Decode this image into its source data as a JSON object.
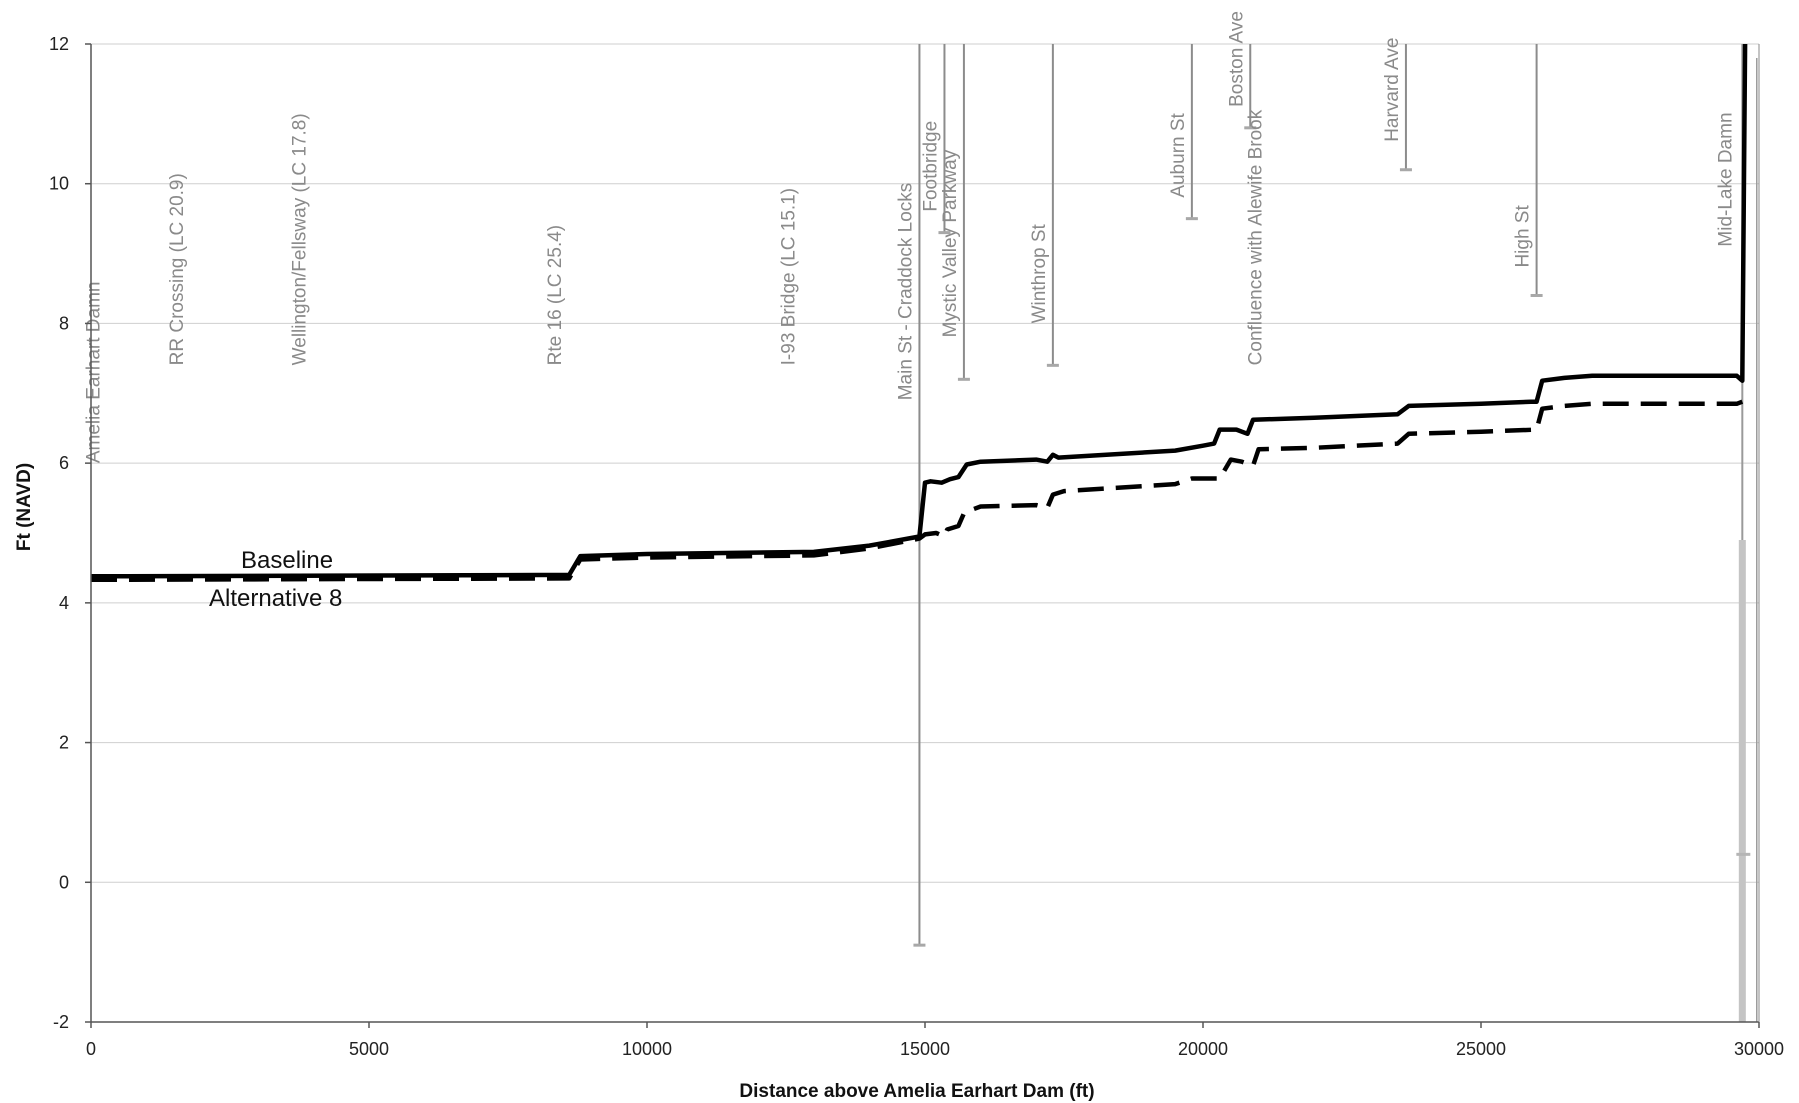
{
  "chart_data": {
    "type": "line",
    "title": "",
    "xlabel": "Distance above Amelia Earhart Dam (ft)",
    "ylabel": "Ft (NAVD)",
    "xlim": [
      0,
      30000
    ],
    "ylim": [
      -2,
      12
    ],
    "x_ticks": [
      0,
      5000,
      10000,
      15000,
      20000,
      25000,
      30000
    ],
    "y_ticks": [
      -2,
      0,
      2,
      4,
      6,
      8,
      10,
      12
    ],
    "grid": "horizontal",
    "legend": "inline labels near left of plot",
    "series": [
      {
        "name": "Baseline",
        "style": "solid",
        "color": "#000000",
        "x": [
          0,
          8600,
          8800,
          10000,
          13000,
          14000,
          14900,
          15000,
          15100,
          15300,
          15450,
          15600,
          15750,
          16000,
          17000,
          17200,
          17300,
          17400,
          19500,
          20000,
          20200,
          20300,
          20600,
          20800,
          20900,
          22000,
          23500,
          23700,
          25000,
          25900,
          26000,
          26100,
          26500,
          27000,
          28000,
          29600,
          29700,
          29750
        ],
        "y": [
          4.38,
          4.4,
          4.67,
          4.7,
          4.73,
          4.82,
          4.95,
          5.72,
          5.74,
          5.72,
          5.77,
          5.8,
          5.98,
          6.02,
          6.05,
          6.02,
          6.12,
          6.08,
          6.18,
          6.25,
          6.28,
          6.48,
          6.48,
          6.42,
          6.62,
          6.65,
          6.7,
          6.82,
          6.85,
          6.88,
          6.88,
          7.18,
          7.22,
          7.25,
          7.25,
          7.25,
          7.18,
          12.0
        ]
      },
      {
        "name": "Alternative 8",
        "style": "dashed",
        "color": "#000000",
        "x": [
          0,
          8600,
          8800,
          10000,
          13000,
          14000,
          14900,
          15000,
          15200,
          15350,
          15400,
          15600,
          15700,
          15800,
          16000,
          17000,
          17200,
          17300,
          17500,
          19500,
          19800,
          20300,
          20500,
          20700,
          20900,
          21000,
          22000,
          23500,
          23700,
          25000,
          26000,
          26100,
          26500,
          27000,
          28000,
          29600,
          29700
        ],
        "y": [
          4.33,
          4.35,
          4.62,
          4.65,
          4.68,
          4.78,
          4.92,
          4.98,
          5.0,
          4.95,
          5.05,
          5.1,
          5.28,
          5.32,
          5.38,
          5.4,
          5.36,
          5.55,
          5.6,
          5.7,
          5.78,
          5.78,
          6.05,
          6.02,
          5.96,
          6.2,
          6.22,
          6.28,
          6.42,
          6.45,
          6.48,
          6.78,
          6.82,
          6.85,
          6.85,
          6.85,
          6.88
        ]
      }
    ],
    "landmarks": [
      {
        "label": "Amelia Earhart Damn",
        "x": 300,
        "label_y": 6.0,
        "top_y": null,
        "bottom_y": null
      },
      {
        "label": "RR Crossing (LC 20.9)",
        "x": 1800,
        "label_y": 7.4,
        "top_y": null,
        "bottom_y": null
      },
      {
        "label": "Wellington/Fellsway (LC 17.8)",
        "x": 4000,
        "label_y": 7.4,
        "top_y": null,
        "bottom_y": null
      },
      {
        "label": "Rte 16 (LC 25.4)",
        "x": 8600,
        "label_y": 7.4,
        "top_y": null,
        "bottom_y": null
      },
      {
        "label": "I-93 Bridge (LC 15.1)",
        "x": 12800,
        "label_y": 7.4,
        "top_y": null,
        "bottom_y": null
      },
      {
        "label": "Main St - Craddock Locks",
        "x": 14900,
        "label_y": 6.9,
        "top_y": 12,
        "bottom_y": -0.9
      },
      {
        "label": "Footbridge",
        "x": 15350,
        "label_y": 9.6,
        "top_y": 12,
        "bottom_y": 9.3
      },
      {
        "label": "Mystic Valley Parkway",
        "x": 15700,
        "label_y": 7.8,
        "top_y": 12,
        "bottom_y": 7.2
      },
      {
        "label": "Winthrop St",
        "x": 17300,
        "label_y": 8.0,
        "top_y": 12,
        "bottom_y": 7.4
      },
      {
        "label": "Auburn St",
        "x": 19800,
        "label_y": 9.8,
        "top_y": 12,
        "bottom_y": 9.5
      },
      {
        "label": "Boston Ave",
        "x": 20850,
        "label_y": 11.1,
        "top_y": 12,
        "bottom_y": 10.8
      },
      {
        "label": "Confluence with Alewife Brook",
        "x": 21200,
        "label_y": 7.4,
        "top_y": null,
        "bottom_y": null
      },
      {
        "label": "Harvard Ave",
        "x": 23650,
        "label_y": 10.6,
        "top_y": 12,
        "bottom_y": 10.2
      },
      {
        "label": "High St",
        "x": 26000,
        "label_y": 8.8,
        "top_y": 12,
        "bottom_y": 8.4
      },
      {
        "label": "Mid-Lake Damn",
        "x": 29650,
        "label_y": 9.1,
        "top_y": null,
        "bottom_y": null
      }
    ]
  }
}
